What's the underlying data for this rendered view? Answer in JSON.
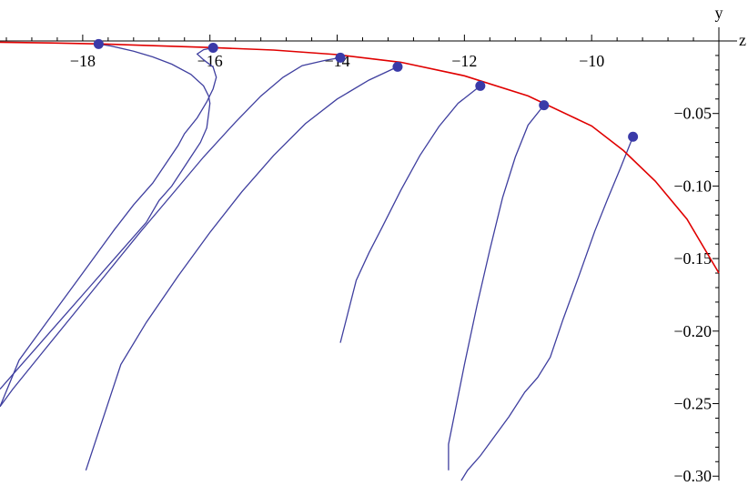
{
  "chart_data": {
    "type": "line",
    "xlabel": "z",
    "ylabel": "y",
    "xlim": [
      -19.3,
      -8.0
    ],
    "ylim": [
      -0.303,
      0.0
    ],
    "x_ticks": [
      -18,
      -16,
      -14,
      -12,
      -10
    ],
    "x_tick_labels": [
      "−18",
      "−16",
      "−14",
      "−12",
      "−10"
    ],
    "y_ticks": [
      -0.05,
      -0.1,
      -0.15,
      -0.2,
      -0.25,
      -0.3
    ],
    "y_tick_labels": [
      "−0.05",
      "−0.10",
      "−0.15",
      "−0.20",
      "−0.25",
      "−0.30"
    ],
    "grid": false,
    "colors": {
      "envelope": "#e00000",
      "trajectories": "#3f3f9f",
      "points": "#3a3aa8"
    },
    "envelope": {
      "x": [
        -19.3,
        -18.5,
        -17.7,
        -17.0,
        -16.0,
        -15.0,
        -14.0,
        -13.0,
        -12.0,
        -11.0,
        -10.0,
        -9.5,
        -9.0,
        -8.5,
        -8.0
      ],
      "y": [
        -0.0009,
        -0.0014,
        -0.0021,
        -0.0031,
        -0.0045,
        -0.0063,
        -0.0094,
        -0.0147,
        -0.024,
        -0.0379,
        -0.0586,
        -0.0755,
        -0.0966,
        -0.1229,
        -0.16
      ]
    },
    "points": [
      {
        "x": -17.75,
        "y": -0.0021
      },
      {
        "x": -15.95,
        "y": -0.0047
      },
      {
        "x": -13.95,
        "y": -0.0115
      },
      {
        "x": -13.05,
        "y": -0.0178
      },
      {
        "x": -11.75,
        "y": -0.031
      },
      {
        "x": -10.75,
        "y": -0.0443
      },
      {
        "x": -9.35,
        "y": -0.066
      }
    ],
    "series": [
      {
        "x": [
          -17.75,
          -17.55,
          -17.2,
          -16.9,
          -16.6,
          -16.3,
          -16.1,
          -16.02,
          -16.0,
          -16.02,
          -16.05,
          -16.15,
          -16.3,
          -16.45,
          -16.6,
          -16.8,
          -17.0,
          -17.3,
          -17.6,
          -17.9,
          -18.2,
          -18.5,
          -18.8,
          -19.1,
          -19.3
        ],
        "y": [
          -0.0021,
          -0.0035,
          -0.007,
          -0.011,
          -0.016,
          -0.023,
          -0.031,
          -0.038,
          -0.043,
          -0.05,
          -0.06,
          -0.07,
          -0.08,
          -0.09,
          -0.1,
          -0.11,
          -0.125,
          -0.14,
          -0.155,
          -0.17,
          -0.185,
          -0.2,
          -0.215,
          -0.23,
          -0.24
        ]
      },
      {
        "x": [
          -15.95,
          -16.1,
          -16.2,
          -16.1,
          -15.95,
          -15.9,
          -15.95,
          -16.05,
          -16.2,
          -16.4,
          -16.5,
          -16.7,
          -16.9,
          -17.2,
          -17.5,
          -17.8,
          -18.1,
          -18.4,
          -18.7,
          -19.0,
          -19.3
        ],
        "y": [
          -0.0047,
          -0.006,
          -0.009,
          -0.013,
          -0.018,
          -0.025,
          -0.033,
          -0.042,
          -0.053,
          -0.064,
          -0.072,
          -0.085,
          -0.098,
          -0.113,
          -0.13,
          -0.148,
          -0.166,
          -0.184,
          -0.202,
          -0.22,
          -0.252
        ]
      },
      {
        "x": [
          -13.95,
          -14.2,
          -14.55,
          -14.85,
          -15.2,
          -15.6,
          -16.1,
          -16.6,
          -17.1,
          -17.6,
          -18.1,
          -18.6,
          -19.1,
          -19.3
        ],
        "y": [
          -0.0115,
          -0.0135,
          -0.017,
          -0.025,
          -0.038,
          -0.056,
          -0.08,
          -0.106,
          -0.132,
          -0.159,
          -0.186,
          -0.213,
          -0.24,
          -0.252
        ]
      },
      {
        "x": [
          -13.05,
          -13.5,
          -14.0,
          -14.5,
          -15.0,
          -15.5,
          -16.0,
          -16.5,
          -17.0,
          -17.4,
          -17.95
        ],
        "y": [
          -0.0178,
          -0.027,
          -0.04,
          -0.057,
          -0.079,
          -0.104,
          -0.132,
          -0.162,
          -0.194,
          -0.223,
          -0.296
        ]
      },
      {
        "x": [
          -11.75,
          -12.1,
          -12.4,
          -12.7,
          -13.0,
          -13.3,
          -13.5,
          -13.7,
          -13.95
        ],
        "y": [
          -0.031,
          -0.043,
          -0.059,
          -0.079,
          -0.103,
          -0.129,
          -0.146,
          -0.165,
          -0.208
        ]
      },
      {
        "x": [
          -10.75,
          -11.0,
          -11.2,
          -11.4,
          -11.6,
          -11.8,
          -12.0,
          -12.15,
          -12.25,
          -12.25
        ],
        "y": [
          -0.0443,
          -0.058,
          -0.08,
          -0.108,
          -0.144,
          -0.182,
          -0.223,
          -0.256,
          -0.278,
          -0.296
        ]
      },
      {
        "x": [
          -9.35,
          -9.55,
          -9.75,
          -9.95,
          -10.2,
          -10.45,
          -10.65,
          -10.85,
          -11.05,
          -11.3,
          -11.55,
          -11.75,
          -11.95,
          -12.05
        ],
        "y": [
          -0.066,
          -0.088,
          -0.109,
          -0.131,
          -0.162,
          -0.192,
          -0.218,
          -0.232,
          -0.242,
          -0.259,
          -0.274,
          -0.286,
          -0.296,
          -0.303
        ]
      }
    ]
  }
}
